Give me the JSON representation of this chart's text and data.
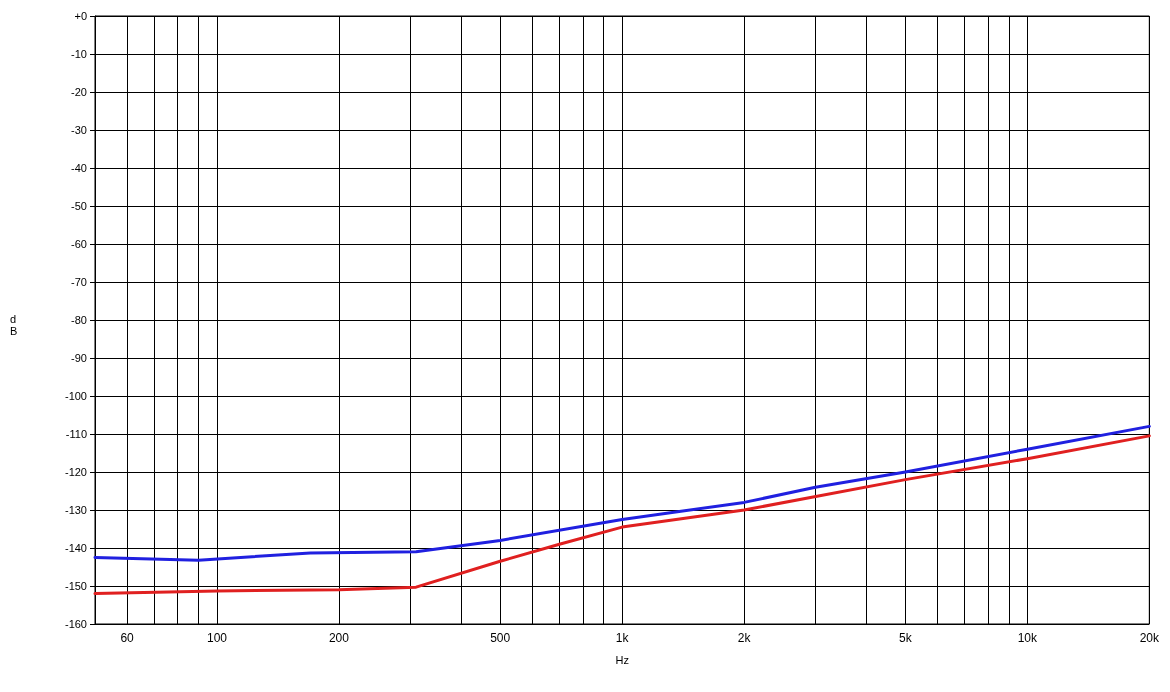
{
  "chart_data": {
    "type": "line",
    "xlabel": "Hz",
    "ylabel": "dB",
    "log": "x",
    "grid": true,
    "marker": "none",
    "line_style": "solid",
    "xlim": [
      50,
      20000
    ],
    "xticks": [
      {
        "value": 60,
        "label": "60"
      },
      {
        "value": 70,
        "label": null
      },
      {
        "value": 80,
        "label": null
      },
      {
        "value": 90,
        "label": null
      },
      {
        "value": 100,
        "label": "100"
      },
      {
        "value": 200,
        "label": "200"
      },
      {
        "value": 300,
        "label": null
      },
      {
        "value": 400,
        "label": null
      },
      {
        "value": 500,
        "label": "500"
      },
      {
        "value": 600,
        "label": null
      },
      {
        "value": 700,
        "label": null
      },
      {
        "value": 800,
        "label": null
      },
      {
        "value": 900,
        "label": null
      },
      {
        "value": 1000,
        "label": "1k"
      },
      {
        "value": 2000,
        "label": "2k"
      },
      {
        "value": 3000,
        "label": null
      },
      {
        "value": 4000,
        "label": null
      },
      {
        "value": 5000,
        "label": "5k"
      },
      {
        "value": 6000,
        "label": null
      },
      {
        "value": 7000,
        "label": null
      },
      {
        "value": 8000,
        "label": null
      },
      {
        "value": 9000,
        "label": null
      },
      {
        "value": 10000,
        "label": "10k"
      },
      {
        "value": 20000,
        "label": "20k"
      }
    ],
    "ylim": [
      -160,
      0
    ],
    "yticks": [
      {
        "value": 0,
        "label": "+0"
      },
      -10,
      -20,
      -30,
      -40,
      -50,
      -60,
      -70,
      -80,
      -90,
      -100,
      -110,
      -120,
      -130,
      -140,
      -150,
      -160
    ],
    "series": [
      {
        "color": "#2020e0",
        "x": [
          50,
          90,
          170,
          310,
          500,
          1000,
          2000,
          3000,
          5000,
          10000,
          20000
        ],
        "values": [
          -142.5,
          -143.2,
          -141.3,
          -141,
          -138,
          -132.5,
          -128,
          -124,
          -120,
          -114,
          -108
        ]
      },
      {
        "color": "#e02020",
        "x": [
          50,
          100,
          200,
          310,
          500,
          700,
          1000,
          2000,
          5000,
          10000,
          20000
        ],
        "values": [
          -152,
          -151.3,
          -151,
          -150.3,
          -143.5,
          -139,
          -134.5,
          -130,
          -122,
          -116.5,
          -110.5
        ]
      }
    ]
  }
}
